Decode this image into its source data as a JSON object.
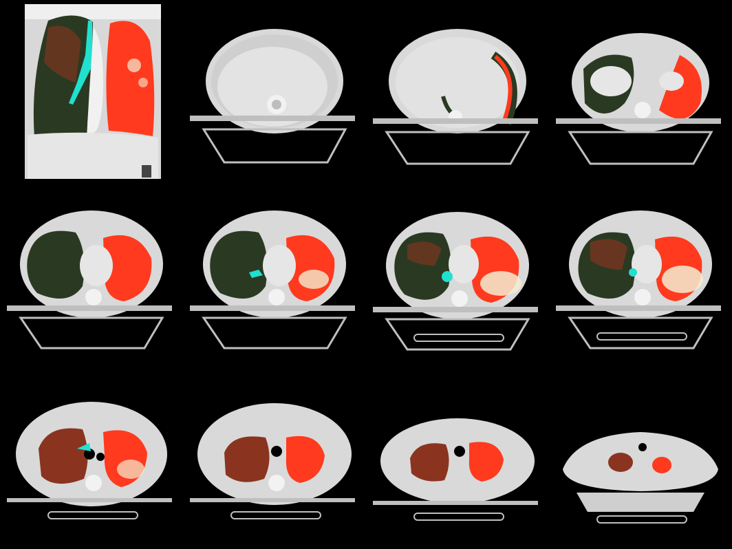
{
  "mosaic": {
    "colors": {
      "background": "#000000",
      "tissue": "#d9d9d9",
      "tissue_light": "#e8e8e8",
      "table": "#bfbfbf",
      "right_lung_overlay": "#2a3a22",
      "right_lung_tint": "#a83a22",
      "left_lung_overlay": "#ff3a1e",
      "airway_overlay": "#22e0d0",
      "lesion": "#f3ecd0"
    },
    "panels": [
      {
        "view": "coronal",
        "row": 0,
        "col": 0
      },
      {
        "view": "axial",
        "row": 0,
        "col": 1,
        "overlay": "none"
      },
      {
        "view": "axial",
        "row": 0,
        "col": 2,
        "overlay": "left-rim"
      },
      {
        "view": "axial",
        "row": 0,
        "col": 3,
        "overlay": "lung-base"
      },
      {
        "view": "axial",
        "row": 1,
        "col": 0,
        "overlay": "lungs"
      },
      {
        "view": "axial",
        "row": 1,
        "col": 1,
        "overlay": "lungs-lesion"
      },
      {
        "view": "axial",
        "row": 1,
        "col": 2,
        "overlay": "lungs-lesion"
      },
      {
        "view": "axial",
        "row": 1,
        "col": 3,
        "overlay": "lungs-lesion"
      },
      {
        "view": "axial",
        "row": 2,
        "col": 0,
        "overlay": "upper-lungs"
      },
      {
        "view": "axial",
        "row": 2,
        "col": 1,
        "overlay": "upper-lungs"
      },
      {
        "view": "axial",
        "row": 2,
        "col": 2,
        "overlay": "apex"
      },
      {
        "view": "axial",
        "row": 2,
        "col": 3,
        "overlay": "apex-small"
      }
    ]
  }
}
